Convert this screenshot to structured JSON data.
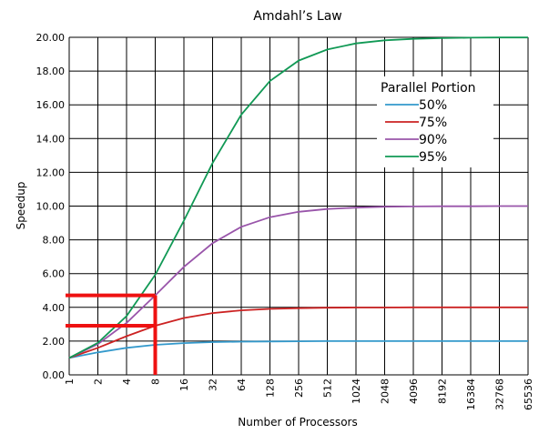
{
  "chart_data": {
    "type": "line",
    "title": "Amdahl’s Law",
    "xlabel": "Number of Processors",
    "ylabel": "Speedup",
    "x": [
      "1",
      "2",
      "4",
      "8",
      "16",
      "32",
      "64",
      "128",
      "256",
      "512",
      "1024",
      "2048",
      "4096",
      "8192",
      "16384",
      "32768",
      "65536"
    ],
    "ylim": [
      0,
      20
    ],
    "yticks": [
      "0.00",
      "2.00",
      "4.00",
      "6.00",
      "8.00",
      "10.00",
      "12.00",
      "14.00",
      "16.00",
      "18.00",
      "20.00"
    ],
    "grid": true,
    "legend": {
      "title": "Parallel Portion",
      "placement": "top-right"
    },
    "series": [
      {
        "name": "50%",
        "color": "#3399cc",
        "values": [
          1.0,
          1.33,
          1.6,
          1.78,
          1.88,
          1.94,
          1.97,
          1.98,
          1.99,
          2.0,
          2.0,
          2.0,
          2.0,
          2.0,
          2.0,
          2.0,
          2.0
        ]
      },
      {
        "name": "75%",
        "color": "#cc2222",
        "values": [
          1.0,
          1.6,
          2.29,
          2.91,
          3.37,
          3.66,
          3.82,
          3.91,
          3.95,
          3.98,
          3.99,
          3.99,
          4.0,
          4.0,
          4.0,
          4.0,
          4.0
        ]
      },
      {
        "name": "90%",
        "color": "#9955aa",
        "values": [
          1.0,
          1.82,
          3.08,
          4.71,
          6.4,
          7.8,
          8.77,
          9.34,
          9.66,
          9.83,
          9.91,
          9.96,
          9.98,
          9.99,
          9.99,
          10.0,
          10.0
        ]
      },
      {
        "name": "95%",
        "color": "#119955",
        "values": [
          1.0,
          1.9,
          3.48,
          5.93,
          9.14,
          12.55,
          15.42,
          17.41,
          18.62,
          19.28,
          19.64,
          19.82,
          19.91,
          19.95,
          19.98,
          19.99,
          19.99
        ]
      }
    ],
    "annotations": {
      "color": "#ee1111",
      "x_value": "8",
      "y_values": [
        4.71,
        2.91
      ]
    }
  }
}
